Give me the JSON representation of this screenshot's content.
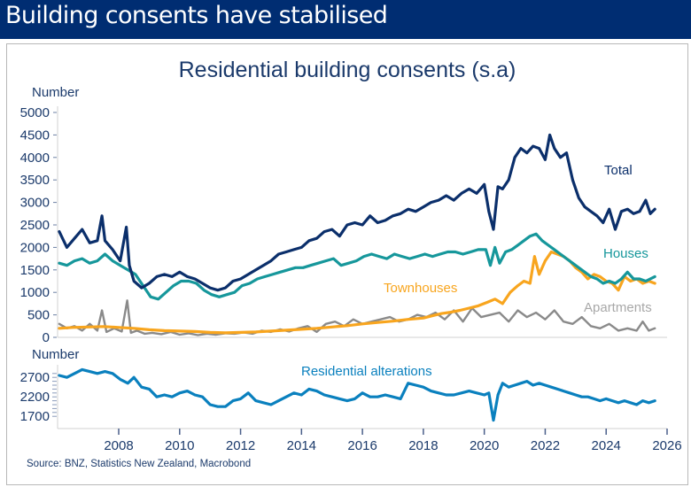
{
  "banner": {
    "title": "Building consents have stabilised"
  },
  "source": "Source: BNZ, Statistics New Zealand, Macrobond",
  "colors": {
    "banner": "#002D72",
    "total": "#0B2F6B",
    "houses": "#16979B",
    "townhouses": "#F8A51E",
    "apartments": "#8A8A8A",
    "alterations": "#0A80BE"
  },
  "chart_data": [
    {
      "type": "line",
      "title": "Residential building consents (s.a)",
      "ylabel": "Number",
      "xlabel": "",
      "xlim": [
        2006,
        2026
      ],
      "ylim": [
        0,
        5000
      ],
      "yticks": [
        0,
        500,
        1000,
        1500,
        2000,
        2500,
        3000,
        3500,
        4000,
        4500,
        5000
      ],
      "grid": false,
      "legend": "inline-labels-right",
      "series": [
        {
          "name": "Total",
          "x": [
            2006.05,
            2006.3,
            2006.55,
            2006.8,
            2007.05,
            2007.3,
            2007.45,
            2007.55,
            2007.8,
            2008.05,
            2008.25,
            2008.35,
            2008.5,
            2008.75,
            2009.0,
            2009.25,
            2009.5,
            2009.75,
            2010.0,
            2010.25,
            2010.5,
            2010.75,
            2011.0,
            2011.25,
            2011.5,
            2011.75,
            2012.0,
            2012.25,
            2012.5,
            2012.75,
            2013.0,
            2013.25,
            2013.5,
            2013.75,
            2014.0,
            2014.25,
            2014.5,
            2014.75,
            2015.0,
            2015.25,
            2015.5,
            2015.75,
            2016.0,
            2016.25,
            2016.5,
            2016.75,
            2017.0,
            2017.25,
            2017.5,
            2017.75,
            2018.0,
            2018.25,
            2018.5,
            2018.75,
            2019.0,
            2019.25,
            2019.5,
            2019.75,
            2020.0,
            2020.15,
            2020.3,
            2020.45,
            2020.6,
            2020.8,
            2021.0,
            2021.2,
            2021.4,
            2021.6,
            2021.8,
            2022.0,
            2022.15,
            2022.3,
            2022.5,
            2022.7,
            2022.9,
            2023.1,
            2023.3,
            2023.5,
            2023.7,
            2023.9,
            2024.1,
            2024.3,
            2024.5,
            2024.7,
            2024.9,
            2025.1,
            2025.3,
            2025.45,
            2025.6
          ],
          "values": [
            2350,
            2000,
            2200,
            2400,
            2100,
            2150,
            2700,
            2150,
            1950,
            1700,
            2450,
            1600,
            1250,
            1100,
            1200,
            1350,
            1400,
            1350,
            1450,
            1350,
            1300,
            1200,
            1100,
            1050,
            1100,
            1250,
            1300,
            1400,
            1500,
            1600,
            1700,
            1850,
            1900,
            1950,
            2000,
            2150,
            2200,
            2350,
            2400,
            2250,
            2500,
            2550,
            2500,
            2700,
            2550,
            2600,
            2700,
            2750,
            2850,
            2800,
            2900,
            3000,
            3050,
            3150,
            3050,
            3200,
            3300,
            3200,
            3400,
            2800,
            2400,
            3350,
            3300,
            3500,
            4000,
            4200,
            4100,
            4250,
            4200,
            3950,
            4500,
            4200,
            4000,
            4100,
            3500,
            3100,
            2900,
            2800,
            2700,
            2550,
            2850,
            2400,
            2800,
            2850,
            2750,
            2800,
            3050,
            2750,
            2850
          ]
        },
        {
          "name": "Houses",
          "x": [
            2006.05,
            2006.3,
            2006.55,
            2006.8,
            2007.05,
            2007.3,
            2007.55,
            2007.8,
            2008.05,
            2008.3,
            2008.55,
            2008.8,
            2009.05,
            2009.3,
            2009.55,
            2009.8,
            2010.05,
            2010.3,
            2010.55,
            2010.8,
            2011.05,
            2011.3,
            2011.55,
            2011.8,
            2012.05,
            2012.3,
            2012.55,
            2012.8,
            2013.05,
            2013.3,
            2013.55,
            2013.8,
            2014.05,
            2014.3,
            2014.55,
            2014.8,
            2015.05,
            2015.3,
            2015.55,
            2015.8,
            2016.05,
            2016.3,
            2016.55,
            2016.8,
            2017.05,
            2017.3,
            2017.55,
            2017.8,
            2018.05,
            2018.3,
            2018.55,
            2018.8,
            2019.05,
            2019.3,
            2019.55,
            2019.8,
            2020.05,
            2020.2,
            2020.35,
            2020.5,
            2020.7,
            2020.9,
            2021.1,
            2021.3,
            2021.5,
            2021.7,
            2021.9,
            2022.1,
            2022.3,
            2022.5,
            2022.7,
            2022.9,
            2023.1,
            2023.3,
            2023.5,
            2023.7,
            2023.9,
            2024.1,
            2024.3,
            2024.5,
            2024.7,
            2024.9,
            2025.1,
            2025.3,
            2025.6
          ],
          "values": [
            1650,
            1600,
            1700,
            1750,
            1650,
            1700,
            1850,
            1700,
            1600,
            1500,
            1400,
            1150,
            900,
            850,
            1000,
            1150,
            1250,
            1250,
            1200,
            1050,
            950,
            900,
            950,
            1000,
            1150,
            1200,
            1300,
            1350,
            1400,
            1450,
            1500,
            1550,
            1550,
            1600,
            1650,
            1700,
            1750,
            1600,
            1650,
            1700,
            1800,
            1850,
            1800,
            1750,
            1850,
            1800,
            1750,
            1800,
            1850,
            1800,
            1850,
            1900,
            1900,
            1850,
            1900,
            1950,
            1950,
            1600,
            2000,
            1650,
            1900,
            1950,
            2050,
            2150,
            2250,
            2300,
            2150,
            2050,
            1950,
            1850,
            1750,
            1650,
            1550,
            1450,
            1350,
            1300,
            1200,
            1250,
            1200,
            1300,
            1450,
            1300,
            1300,
            1250,
            1350
          ]
        },
        {
          "name": "Townhouses",
          "x": [
            2006.05,
            2006.5,
            2007.0,
            2007.5,
            2008.0,
            2008.5,
            2009.0,
            2009.5,
            2010.0,
            2010.5,
            2011.0,
            2011.5,
            2012.0,
            2012.5,
            2013.0,
            2013.5,
            2014.0,
            2014.5,
            2015.0,
            2015.5,
            2016.0,
            2016.5,
            2017.0,
            2017.5,
            2018.0,
            2018.3,
            2018.6,
            2018.9,
            2019.2,
            2019.5,
            2019.8,
            2020.1,
            2020.35,
            2020.6,
            2020.85,
            2021.1,
            2021.3,
            2021.5,
            2021.65,
            2021.8,
            2022.0,
            2022.2,
            2022.4,
            2022.6,
            2022.8,
            2023.0,
            2023.2,
            2023.4,
            2023.6,
            2023.8,
            2024.0,
            2024.2,
            2024.4,
            2024.6,
            2024.8,
            2025.0,
            2025.2,
            2025.4,
            2025.6
          ],
          "values": [
            200,
            220,
            230,
            240,
            220,
            200,
            170,
            150,
            140,
            130,
            110,
            100,
            110,
            120,
            140,
            160,
            180,
            200,
            230,
            260,
            300,
            330,
            360,
            400,
            430,
            480,
            530,
            560,
            600,
            650,
            700,
            780,
            850,
            750,
            1000,
            1150,
            1250,
            1200,
            1800,
            1400,
            1700,
            1900,
            1850,
            1800,
            1700,
            1550,
            1450,
            1300,
            1400,
            1350,
            1250,
            1200,
            1050,
            1350,
            1250,
            1300,
            1200,
            1250,
            1200
          ]
        },
        {
          "name": "Apartments",
          "x": [
            2006.05,
            2006.3,
            2006.55,
            2006.8,
            2007.05,
            2007.3,
            2007.45,
            2007.6,
            2007.85,
            2008.1,
            2008.28,
            2008.4,
            2008.6,
            2008.85,
            2009.1,
            2009.4,
            2009.7,
            2010.0,
            2010.3,
            2010.6,
            2010.9,
            2011.2,
            2011.5,
            2011.8,
            2012.1,
            2012.4,
            2012.7,
            2013.0,
            2013.3,
            2013.6,
            2013.9,
            2014.2,
            2014.5,
            2014.8,
            2015.1,
            2015.4,
            2015.7,
            2016.0,
            2016.3,
            2016.6,
            2016.9,
            2017.2,
            2017.5,
            2017.8,
            2018.1,
            2018.4,
            2018.7,
            2019.0,
            2019.3,
            2019.6,
            2019.9,
            2020.2,
            2020.5,
            2020.8,
            2021.1,
            2021.4,
            2021.7,
            2022.0,
            2022.3,
            2022.6,
            2022.9,
            2023.2,
            2023.5,
            2023.8,
            2024.1,
            2024.4,
            2024.7,
            2025.0,
            2025.2,
            2025.4,
            2025.6
          ],
          "values": [
            300,
            200,
            250,
            150,
            300,
            150,
            600,
            120,
            200,
            130,
            820,
            100,
            150,
            80,
            100,
            70,
            120,
            60,
            90,
            50,
            80,
            60,
            90,
            80,
            110,
            80,
            150,
            120,
            180,
            130,
            200,
            250,
            120,
            300,
            350,
            250,
            400,
            300,
            350,
            400,
            450,
            350,
            400,
            500,
            450,
            550,
            400,
            600,
            350,
            650,
            450,
            500,
            550,
            350,
            600,
            450,
            550,
            400,
            600,
            350,
            300,
            450,
            250,
            200,
            300,
            150,
            200,
            150,
            350,
            150,
            200
          ]
        }
      ]
    },
    {
      "type": "line",
      "title": "",
      "ylabel": "Number",
      "xlim": [
        2006,
        2026
      ],
      "ylim": [
        1500,
        3000
      ],
      "yticks": [
        1700,
        2200,
        2700
      ],
      "xticks": [
        2008,
        2010,
        2012,
        2014,
        2016,
        2018,
        2020,
        2022,
        2024,
        2026
      ],
      "grid": false,
      "series": [
        {
          "name": "Residential alterations",
          "x": [
            2006.05,
            2006.3,
            2006.55,
            2006.8,
            2007.05,
            2007.3,
            2007.55,
            2007.8,
            2008.05,
            2008.3,
            2008.5,
            2008.75,
            2009.0,
            2009.25,
            2009.5,
            2009.75,
            2010.0,
            2010.25,
            2010.5,
            2010.75,
            2011.0,
            2011.25,
            2011.5,
            2011.75,
            2012.0,
            2012.25,
            2012.5,
            2012.75,
            2013.0,
            2013.25,
            2013.5,
            2013.75,
            2014.0,
            2014.25,
            2014.5,
            2014.75,
            2015.0,
            2015.25,
            2015.5,
            2015.75,
            2016.0,
            2016.25,
            2016.5,
            2016.75,
            2017.0,
            2017.25,
            2017.5,
            2017.75,
            2018.0,
            2018.25,
            2018.5,
            2018.75,
            2019.0,
            2019.25,
            2019.5,
            2019.75,
            2020.0,
            2020.15,
            2020.3,
            2020.45,
            2020.6,
            2020.8,
            2021.0,
            2021.2,
            2021.4,
            2021.6,
            2021.8,
            2022.0,
            2022.2,
            2022.4,
            2022.6,
            2022.8,
            2023.0,
            2023.2,
            2023.4,
            2023.6,
            2023.8,
            2024.0,
            2024.2,
            2024.4,
            2024.6,
            2024.8,
            2025.0,
            2025.2,
            2025.4,
            2025.6
          ],
          "values": [
            2750,
            2700,
            2800,
            2900,
            2850,
            2800,
            2850,
            2800,
            2650,
            2550,
            2700,
            2450,
            2400,
            2200,
            2250,
            2200,
            2300,
            2350,
            2250,
            2200,
            2000,
            1950,
            1950,
            2100,
            2150,
            2300,
            2100,
            2050,
            2000,
            2100,
            2200,
            2300,
            2250,
            2400,
            2350,
            2250,
            2200,
            2150,
            2100,
            2150,
            2300,
            2200,
            2200,
            2250,
            2200,
            2150,
            2550,
            2500,
            2450,
            2350,
            2300,
            2250,
            2250,
            2300,
            2350,
            2300,
            2250,
            2300,
            1600,
            2250,
            2550,
            2450,
            2500,
            2550,
            2600,
            2500,
            2550,
            2500,
            2450,
            2400,
            2350,
            2300,
            2250,
            2200,
            2200,
            2150,
            2100,
            2150,
            2100,
            2050,
            2100,
            2050,
            2000,
            2100,
            2050,
            2100
          ]
        }
      ]
    }
  ]
}
